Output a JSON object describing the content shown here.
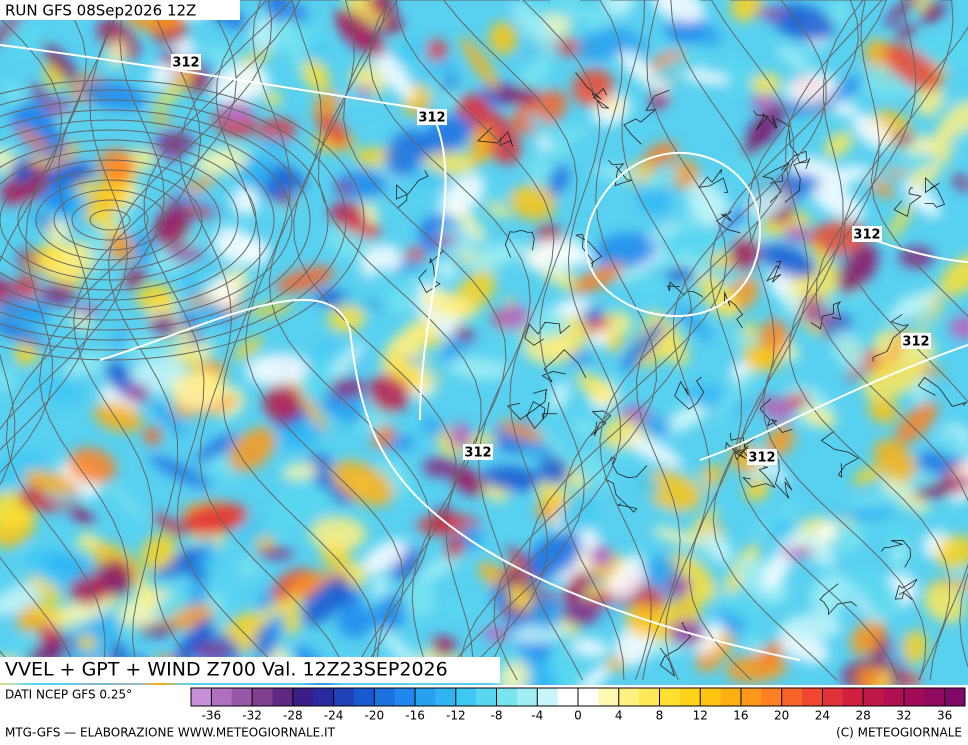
{
  "header": {
    "run": "RUN GFS 08Sep2026 12Z"
  },
  "caption": "VVEL + GPT + WIND Z700 Val. 12Z23SEP2026",
  "contour_labels": [
    "312",
    "312",
    "312",
    "312",
    "312",
    "312"
  ],
  "footer": {
    "source": "DATI NCEP GFS 0.25°",
    "credit": "MTG-GFS — ELABORAZIONE WWW.METEOGIORNALE.IT",
    "copyright": "(C) METEOGIORNALE"
  },
  "colorbar": {
    "lim": [
      -38,
      38
    ],
    "ticks": [
      -36,
      -32,
      -28,
      -24,
      -20,
      -16,
      -12,
      -8,
      -4,
      0,
      4,
      8,
      12,
      16,
      20,
      24,
      28,
      32,
      36
    ],
    "colors": [
      "#c890d8",
      "#b070c0",
      "#9858a8",
      "#804090",
      "#602880",
      "#3c1c88",
      "#2a2aa0",
      "#2040b8",
      "#1858d0",
      "#1c70e0",
      "#2088ec",
      "#28a0f0",
      "#30b4f4",
      "#40c8f4",
      "#58d8f0",
      "#78e4f0",
      "#a0eef4",
      "#c8f6f8",
      "#ffffff",
      "#ffffff",
      "#fff8b0",
      "#fff080",
      "#ffe858",
      "#ffe030",
      "#ffd418",
      "#ffc410",
      "#ffb010",
      "#ff9818",
      "#ff8020",
      "#f86428",
      "#f04830",
      "#e03038",
      "#d02040",
      "#c01848",
      "#b01050",
      "#a00c58",
      "#900860",
      "#800868"
    ]
  }
}
